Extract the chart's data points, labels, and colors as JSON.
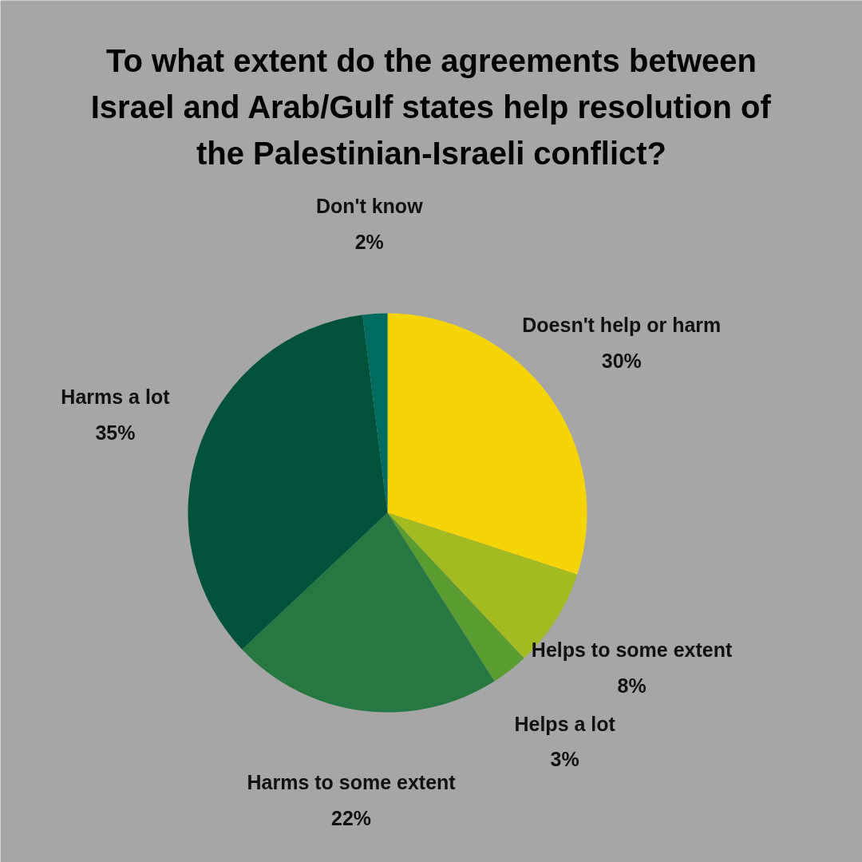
{
  "chart_data": {
    "type": "pie",
    "title": "To what extent do the agreements between Israel and Arab/Gulf states help resolution of the Palestinian-Israeli conflict?",
    "categories": [
      "Doesn't help or harm",
      "Helps to some extent",
      "Helps a lot",
      "Harms to some extent",
      "Harms a lot",
      "Don't know"
    ],
    "values": [
      30,
      8,
      3,
      22,
      35,
      2
    ],
    "colors": [
      "#f5d507",
      "#a3ba20",
      "#5a9b32",
      "#267742",
      "#00533a",
      "#006b5f"
    ],
    "value_labels": [
      "30%",
      "8%",
      "3%",
      "22%",
      "35%",
      "2%"
    ]
  }
}
